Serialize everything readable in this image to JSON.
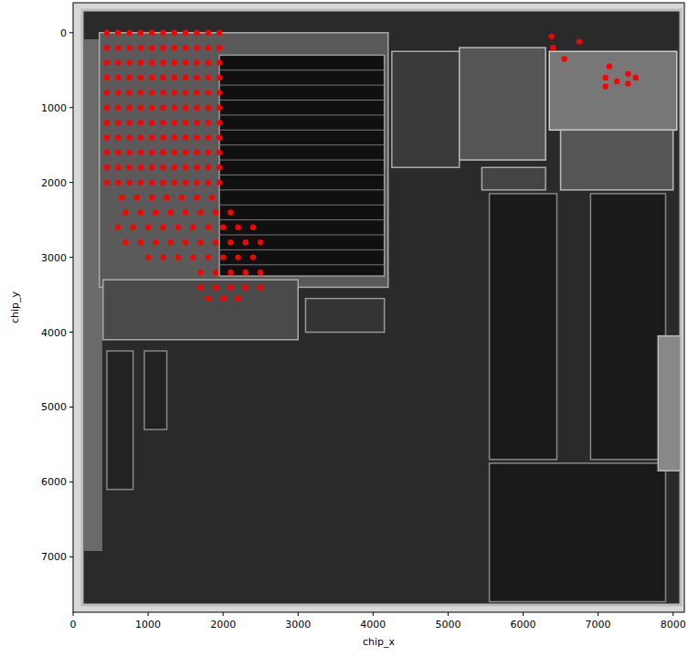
{
  "chart_data": {
    "type": "scatter",
    "xlabel": "chip_x",
    "ylabel": "chip_y",
    "color": "#ff0000",
    "marker": "circle",
    "xlim": [
      0,
      8150
    ],
    "ylim": [
      7740,
      -400
    ],
    "xticks": [
      0,
      1000,
      2000,
      3000,
      4000,
      5000,
      6000,
      7000,
      8000
    ],
    "yticks": [
      0,
      1000,
      2000,
      3000,
      4000,
      5000,
      6000,
      7000
    ],
    "x": [
      450,
      600,
      750,
      900,
      1050,
      1200,
      1350,
      1500,
      1650,
      1800,
      1950,
      450,
      600,
      750,
      900,
      1050,
      1200,
      1350,
      1500,
      1650,
      1800,
      1950,
      450,
      600,
      750,
      900,
      1050,
      1200,
      1350,
      1500,
      1650,
      1800,
      1950,
      450,
      600,
      750,
      900,
      1050,
      1200,
      1350,
      1500,
      1650,
      1800,
      1950,
      450,
      600,
      750,
      900,
      1050,
      1200,
      1350,
      1500,
      1650,
      1800,
      1950,
      450,
      600,
      750,
      900,
      1050,
      1200,
      1350,
      1500,
      1650,
      1800,
      1950,
      450,
      600,
      750,
      900,
      1050,
      1200,
      1350,
      1500,
      1650,
      1800,
      1950,
      450,
      600,
      750,
      900,
      1050,
      1200,
      1350,
      1500,
      1650,
      1800,
      1950,
      450,
      600,
      750,
      900,
      1050,
      1200,
      1350,
      1500,
      1650,
      1800,
      1950,
      450,
      600,
      750,
      900,
      1050,
      1200,
      1350,
      1500,
      1650,
      1800,
      1950,
      450,
      600,
      750,
      900,
      1050,
      1200,
      1350,
      1500,
      1650,
      1800,
      1950,
      650,
      850,
      1050,
      1250,
      1450,
      1650,
      1850,
      700,
      900,
      1100,
      1300,
      1500,
      1700,
      1900,
      2100,
      600,
      800,
      1000,
      1200,
      1400,
      1600,
      1800,
      2000,
      2200,
      2400,
      700,
      900,
      1100,
      1300,
      1500,
      1700,
      1900,
      2100,
      2300,
      2500,
      1000,
      1200,
      1400,
      1600,
      1800,
      2000,
      2200,
      2400,
      1700,
      1900,
      2100,
      2300,
      2500,
      1700,
      1900,
      2100,
      2300,
      2500,
      1800,
      2000,
      2200,
      6380,
      6400,
      6550,
      6750,
      7150,
      7100,
      7250,
      7400,
      7100,
      7400,
      7500
    ],
    "values": [
      0,
      0,
      0,
      0,
      0,
      0,
      0,
      0,
      0,
      0,
      0,
      200,
      200,
      200,
      200,
      200,
      200,
      200,
      200,
      200,
      200,
      200,
      400,
      400,
      400,
      400,
      400,
      400,
      400,
      400,
      400,
      400,
      400,
      600,
      600,
      600,
      600,
      600,
      600,
      600,
      600,
      600,
      600,
      600,
      800,
      800,
      800,
      800,
      800,
      800,
      800,
      800,
      800,
      800,
      800,
      1000,
      1000,
      1000,
      1000,
      1000,
      1000,
      1000,
      1000,
      1000,
      1000,
      1000,
      1200,
      1200,
      1200,
      1200,
      1200,
      1200,
      1200,
      1200,
      1200,
      1200,
      1200,
      1400,
      1400,
      1400,
      1400,
      1400,
      1400,
      1400,
      1400,
      1400,
      1400,
      1400,
      1600,
      1600,
      1600,
      1600,
      1600,
      1600,
      1600,
      1600,
      1600,
      1600,
      1600,
      1800,
      1800,
      1800,
      1800,
      1800,
      1800,
      1800,
      1800,
      1800,
      1800,
      1800,
      2000,
      2000,
      2000,
      2000,
      2000,
      2000,
      2000,
      2000,
      2000,
      2000,
      2000,
      2200,
      2200,
      2200,
      2200,
      2200,
      2200,
      2200,
      2400,
      2400,
      2400,
      2400,
      2400,
      2400,
      2400,
      2400,
      2600,
      2600,
      2600,
      2600,
      2600,
      2600,
      2600,
      2600,
      2600,
      2600,
      2800,
      2800,
      2800,
      2800,
      2800,
      2800,
      2800,
      2800,
      2800,
      2800,
      3000,
      3000,
      3000,
      3000,
      3000,
      3000,
      3000,
      3000,
      3200,
      3200,
      3200,
      3200,
      3200,
      3400,
      3400,
      3400,
      3400,
      3400,
      3550,
      3550,
      3550,
      50,
      200,
      350,
      120,
      450,
      600,
      650,
      550,
      720,
      680,
      600
    ]
  }
}
